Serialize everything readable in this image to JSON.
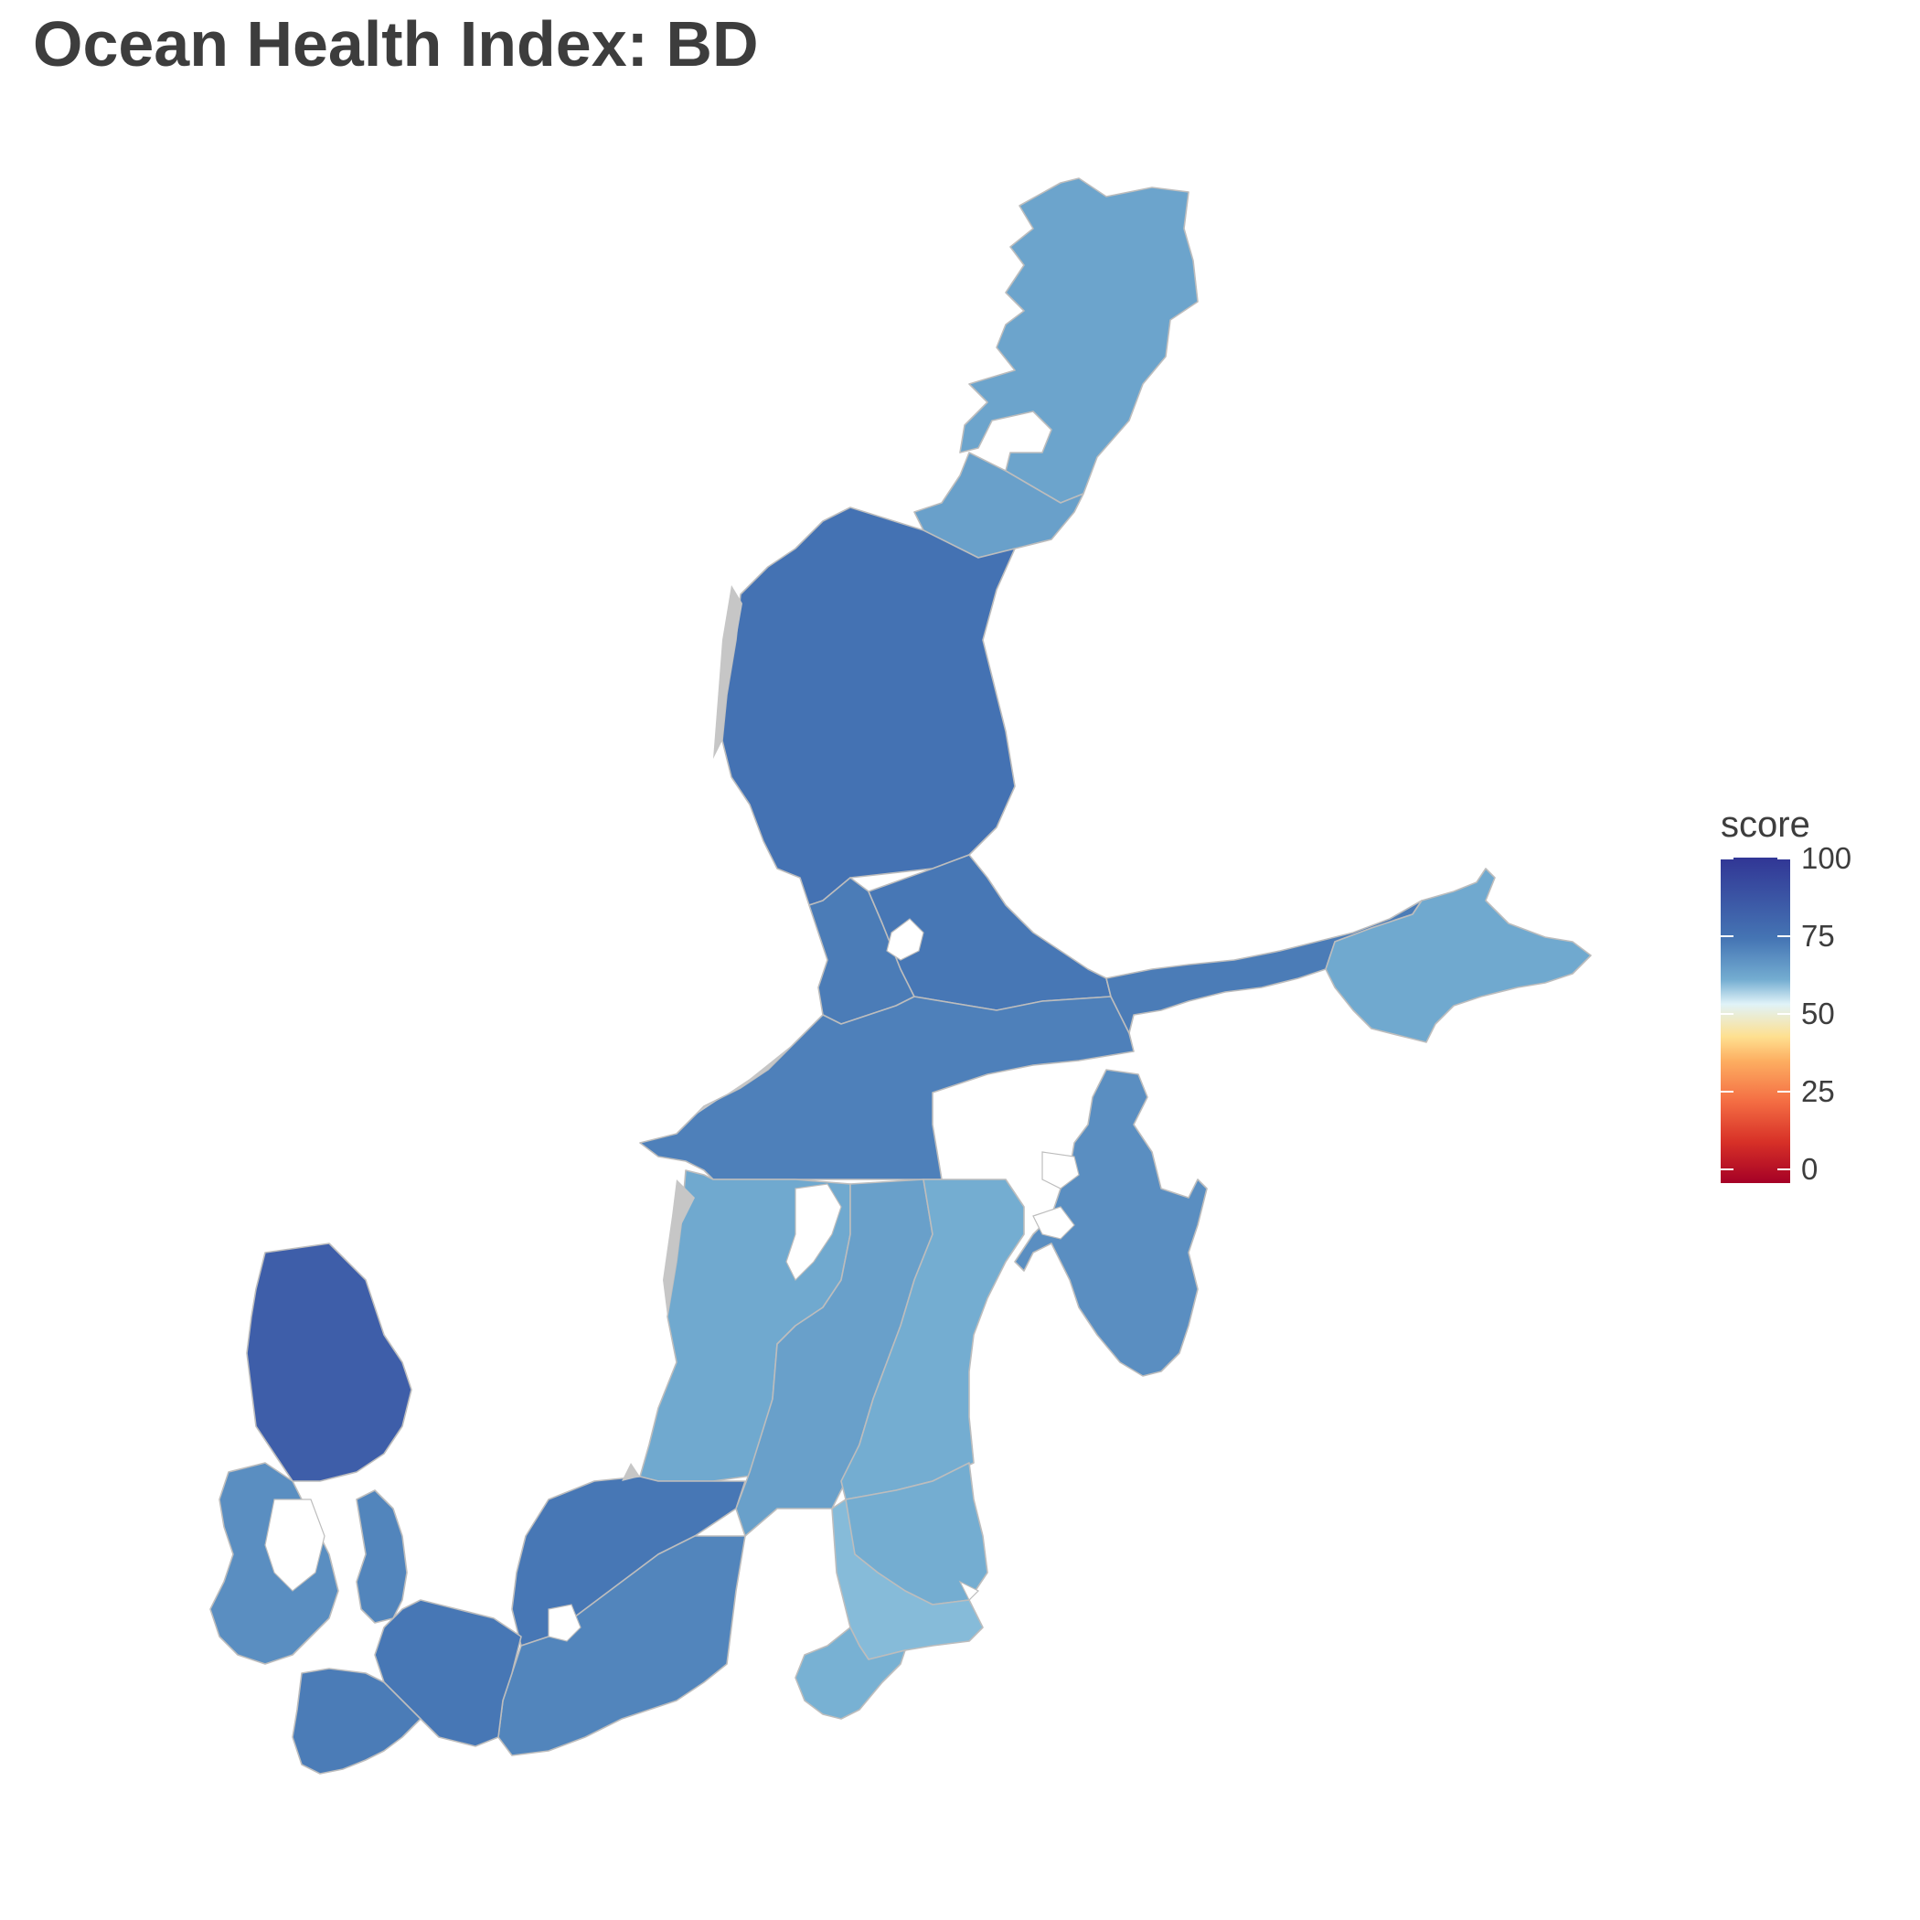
{
  "title": "Ocean Health Index: BD",
  "legend": {
    "title": "score",
    "ticks": [
      "100",
      "75",
      "50",
      "25",
      "0"
    ],
    "colors": {
      "100": "#313695",
      "75": "#74add1",
      "50": "#fee090",
      "25": "#f46d43",
      "0": "#a50026"
    }
  },
  "chart_data": {
    "type": "choropleth",
    "title": "Ocean Health Index: BD",
    "legend_title": "score",
    "scale_range": [
      0,
      100
    ],
    "legend_position": "right",
    "regions": [
      {
        "id": "bothnian-bay",
        "score": 77
      },
      {
        "id": "quark",
        "score": 78
      },
      {
        "id": "bothnian-sea",
        "score": 88
      },
      {
        "id": "aland-sea",
        "score": 86
      },
      {
        "id": "archipelago-sea",
        "score": 87
      },
      {
        "id": "northern-baltic-proper",
        "score": 85
      },
      {
        "id": "gulf-of-finland-west",
        "score": 86
      },
      {
        "id": "gulf-of-finland-east",
        "score": 76
      },
      {
        "id": "gulf-of-riga",
        "score": 82
      },
      {
        "id": "western-gotland-basin",
        "score": 76
      },
      {
        "id": "eastern-gotland-basin-west",
        "score": 78
      },
      {
        "id": "eastern-gotland-basin-east",
        "score": 75
      },
      {
        "id": "gdansk-basin-north",
        "score": 75
      },
      {
        "id": "gdansk-basin-south",
        "score": 71
      },
      {
        "id": "gdansk-bay",
        "score": 74
      },
      {
        "id": "bornholm-basin-north",
        "score": 87
      },
      {
        "id": "bornholm-basin-south",
        "score": 84
      },
      {
        "id": "arkona-basin",
        "score": 87
      },
      {
        "id": "kiel-bay",
        "score": 86
      },
      {
        "id": "belt-sea",
        "score": 82
      },
      {
        "id": "the-sound",
        "score": 84
      },
      {
        "id": "kattegat",
        "score": 92
      }
    ]
  }
}
